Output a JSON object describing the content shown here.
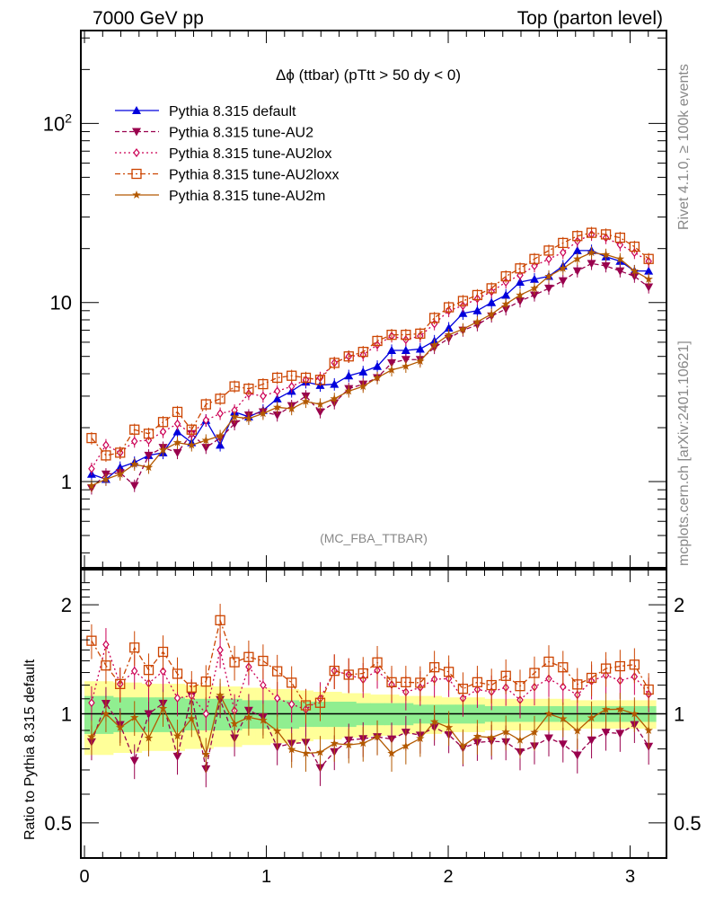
{
  "header": {
    "left": "7000 GeV pp",
    "right": "Top (parton level)"
  },
  "side_text": {
    "top": "Rivet 4.1.0, ≥ 100k events",
    "bottom": "mcplots.cern.ch [arXiv:2401.10621]"
  },
  "chart_data": [
    {
      "type": "line",
      "panel": "main",
      "title": "Δϕ (ttbar) (pTtt > 50 dy < 0)",
      "annotation": "(MC_FBA_TTBAR)",
      "xlabel": "",
      "ylabel": "",
      "xlim": [
        -0.02,
        3.2
      ],
      "ylim": [
        0.33,
        330
      ],
      "yscale": "log",
      "y_ticks": [
        {
          "value": 1,
          "label": "1"
        },
        {
          "value": 10,
          "label": "10"
        },
        {
          "value": 100,
          "label": "10^2"
        }
      ],
      "legend_position": "top-left",
      "x": [
        0.039,
        0.118,
        0.196,
        0.275,
        0.353,
        0.432,
        0.511,
        0.589,
        0.668,
        0.746,
        0.825,
        0.903,
        0.982,
        1.06,
        1.139,
        1.217,
        1.296,
        1.374,
        1.453,
        1.532,
        1.61,
        1.689,
        1.767,
        1.846,
        1.924,
        2.003,
        2.081,
        2.16,
        2.238,
        2.317,
        2.395,
        2.474,
        2.553,
        2.631,
        2.71,
        2.788,
        2.867,
        2.945,
        3.024,
        3.102
      ],
      "series": [
        {
          "name": "Pythia 8.315 default",
          "color": "#0000dd",
          "marker": "triangle-up",
          "dash": "solid",
          "values": [
            1.1,
            1.03,
            1.2,
            1.28,
            1.4,
            1.45,
            1.9,
            1.65,
            2.2,
            1.6,
            2.45,
            2.3,
            2.5,
            2.9,
            3.2,
            3.6,
            3.45,
            3.5,
            3.9,
            4.1,
            4.4,
            5.4,
            5.4,
            5.5,
            6.1,
            7.2,
            8.7,
            9.0,
            10.0,
            11.0,
            13.0,
            13.5,
            14.0,
            16.0,
            19.5,
            19.5,
            18.0,
            17.0,
            15.0,
            15.0
          ]
        },
        {
          "name": "Pythia 8.315 tune-AU2",
          "color": "#99004d",
          "marker": "triangle-down",
          "dash": "dashed",
          "values": [
            0.92,
            1.1,
            1.12,
            0.95,
            1.4,
            1.55,
            1.45,
            1.85,
            1.55,
            1.75,
            2.1,
            2.35,
            2.45,
            2.35,
            2.65,
            3.0,
            2.45,
            2.75,
            3.3,
            3.5,
            3.8,
            4.6,
            4.8,
            4.8,
            5.6,
            6.3,
            7.0,
            7.5,
            8.4,
            9.2,
            10.2,
            11.0,
            12.0,
            13.2,
            15.0,
            16.5,
            16.0,
            15.0,
            14.0,
            12.2
          ]
        },
        {
          "name": "Pythia 8.315 tune-AU2lox",
          "color": "#cc0055",
          "marker": "diamond",
          "dash": "dotted",
          "values": [
            1.18,
            1.6,
            1.45,
            1.68,
            1.7,
            1.9,
            2.1,
            1.85,
            2.2,
            2.4,
            2.5,
            3.1,
            3.0,
            3.2,
            3.4,
            3.7,
            3.8,
            4.6,
            5.0,
            5.1,
            5.8,
            6.5,
            6.2,
            6.5,
            7.6,
            9.0,
            9.6,
            10.5,
            11.5,
            13.0,
            14.2,
            16.0,
            17.5,
            19.0,
            22.0,
            24.0,
            23.0,
            21.0,
            19.0,
            17.0
          ]
        },
        {
          "name": "Pythia 8.315 tune-AU2loxx",
          "color": "#cc4400",
          "marker": "square-open",
          "dash": "dashdot",
          "values": [
            1.75,
            1.4,
            1.45,
            1.95,
            1.85,
            2.15,
            2.45,
            1.95,
            2.7,
            2.9,
            3.4,
            3.3,
            3.5,
            3.8,
            3.9,
            3.8,
            3.7,
            4.6,
            5.0,
            5.3,
            6.1,
            6.6,
            6.6,
            6.7,
            8.2,
            9.4,
            10.2,
            11.0,
            12.0,
            14.0,
            15.5,
            17.5,
            19.5,
            21.5,
            23.5,
            24.5,
            24.0,
            23.0,
            20.5,
            17.5
          ]
        },
        {
          "name": "Pythia 8.315 tune-AU2m",
          "color": "#b35900",
          "marker": "star",
          "dash": "solid",
          "values": [
            0.95,
            1.03,
            1.1,
            1.25,
            1.2,
            1.5,
            1.65,
            1.6,
            1.7,
            1.8,
            2.3,
            2.25,
            2.4,
            2.6,
            2.55,
            2.8,
            2.7,
            2.9,
            3.2,
            3.4,
            3.8,
            4.2,
            4.4,
            4.7,
            5.8,
            6.6,
            7.1,
            7.8,
            8.6,
            9.8,
            11.0,
            12.0,
            14.0,
            15.5,
            17.5,
            19.0,
            18.5,
            17.5,
            15.0,
            13.5
          ]
        }
      ]
    },
    {
      "type": "line",
      "panel": "ratio",
      "ylabel": "Ratio to Pythia 8.315 default",
      "xlabel": "",
      "xlim": [
        -0.02,
        3.2
      ],
      "ylim": [
        0.4,
        2.5
      ],
      "yscale": "log",
      "x_ticks": [
        0,
        1,
        2,
        3
      ],
      "y_ticks": [
        {
          "value": 0.5,
          "label": "0.5"
        },
        {
          "value": 1,
          "label": "1"
        },
        {
          "value": 2,
          "label": "2"
        }
      ],
      "reference_line": 1,
      "band_inner": {
        "color": "#90ee90",
        "half_width": [
          0.12,
          0.12,
          0.11,
          0.11,
          0.11,
          0.11,
          0.11,
          0.1,
          0.1,
          0.1,
          0.1,
          0.09,
          0.09,
          0.09,
          0.09,
          0.08,
          0.08,
          0.08,
          0.08,
          0.07,
          0.07,
          0.07,
          0.07,
          0.06,
          0.06,
          0.06,
          0.06,
          0.06,
          0.05,
          0.05,
          0.05,
          0.05,
          0.05,
          0.05,
          0.05,
          0.05,
          0.05,
          0.05,
          0.05,
          0.05
        ]
      },
      "band_outer": {
        "color": "#ffff99",
        "half_width": [
          0.23,
          0.23,
          0.22,
          0.22,
          0.21,
          0.21,
          0.21,
          0.2,
          0.2,
          0.19,
          0.19,
          0.18,
          0.18,
          0.17,
          0.17,
          0.16,
          0.15,
          0.15,
          0.14,
          0.14,
          0.13,
          0.13,
          0.12,
          0.12,
          0.12,
          0.11,
          0.11,
          0.11,
          0.1,
          0.1,
          0.1,
          0.1,
          0.1,
          0.1,
          0.09,
          0.09,
          0.09,
          0.09,
          0.09,
          0.09
        ]
      }
    }
  ]
}
